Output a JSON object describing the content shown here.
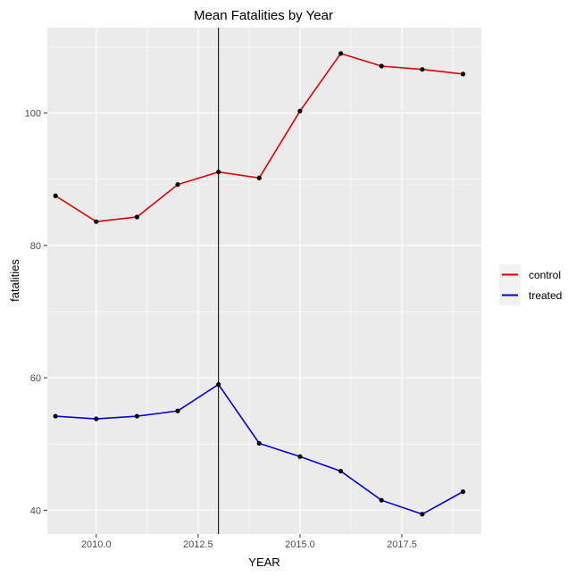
{
  "chart_data": {
    "type": "line",
    "title": "Mean Fatalities by Year",
    "xlabel": "YEAR",
    "ylabel": "fatalities",
    "x": [
      2009,
      2010,
      2011,
      2012,
      2013,
      2014,
      2015,
      2016,
      2017,
      2018,
      2019
    ],
    "series": [
      {
        "name": "control",
        "color": "#e00000",
        "values": [
          87.5,
          83.6,
          84.3,
          89.2,
          91.1,
          90.2,
          100.3,
          109.0,
          107.1,
          106.6,
          105.9
        ]
      },
      {
        "name": "treated",
        "color": "#0000e0",
        "values": [
          54.2,
          53.8,
          54.2,
          55.0,
          59.0,
          50.1,
          48.1,
          45.9,
          41.5,
          39.4,
          42.8
        ]
      }
    ],
    "xlim": [
      2008.8,
      2019.45
    ],
    "ylim": [
      36.4,
      112.9
    ],
    "xticks": [
      2010,
      2012.5,
      2015,
      2017.5
    ],
    "xtick_labels": [
      "2010.0",
      "2012.5",
      "2015.0",
      "2017.5"
    ],
    "yticks": [
      40,
      60,
      80,
      100
    ],
    "ytick_labels": [
      "40",
      "60",
      "80",
      "100"
    ],
    "vline_x": 2013,
    "point_color": "#000000",
    "panel_background": "#ebebeb",
    "grid": true,
    "legend_position": "right"
  }
}
